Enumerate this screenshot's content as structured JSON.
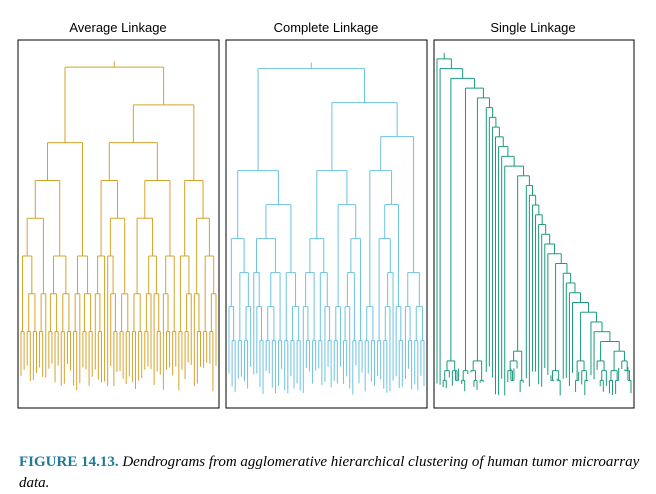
{
  "figure": {
    "panels": [
      {
        "title": "Average Linkage",
        "color": "#d4a32a"
      },
      {
        "title": "Complete Linkage",
        "color": "#6cc3e0"
      },
      {
        "title": "Single Linkage",
        "color": "#1a9a7e"
      }
    ]
  },
  "caption": {
    "label": "FIGURE 14.13.",
    "text": "Dendrograms from agglomerative hierarchical clustering of human tumor microarray data."
  }
}
